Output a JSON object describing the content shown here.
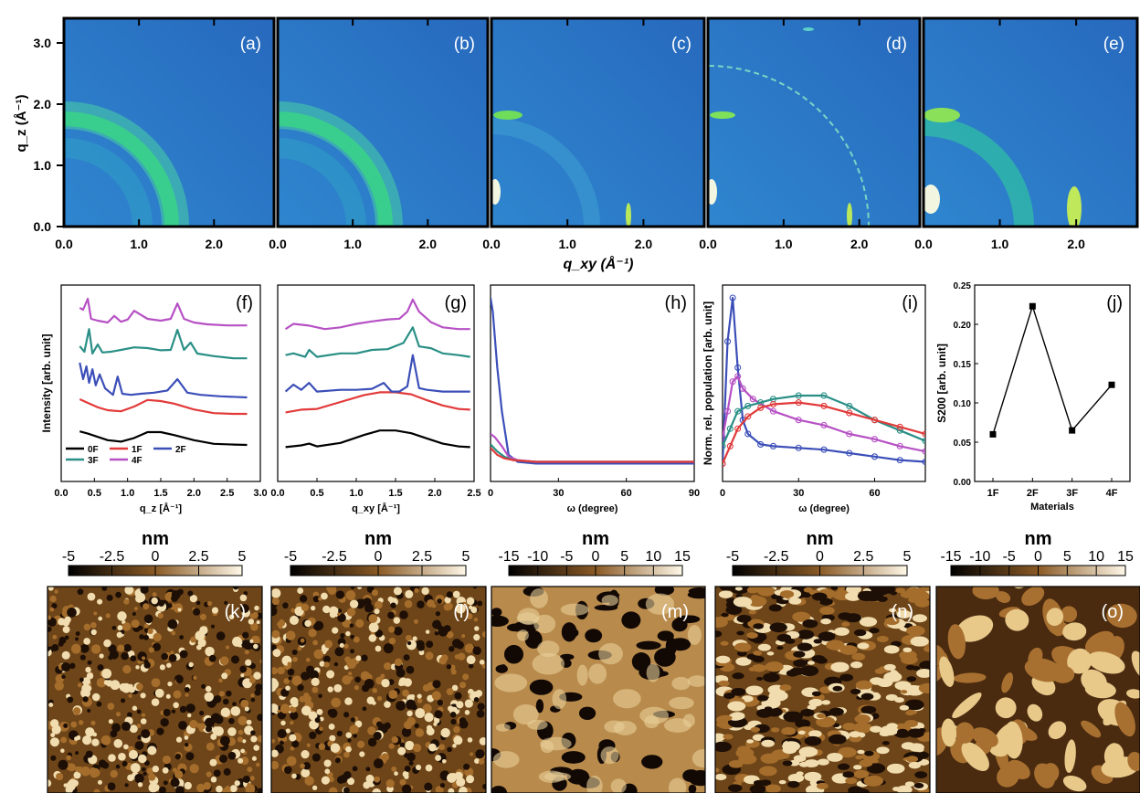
{
  "colors": {
    "giwaxs_bg": "#2a74c6",
    "giwaxs_ring": "#35c3a6",
    "giwaxs_hot": "#e7f29a",
    "series": {
      "0F": "#000000",
      "1F": "#e23a3a",
      "2F": "#3c4fb8",
      "3F": "#2a8f86",
      "4F": "#b651c4"
    },
    "afm_dark": "#1d0f06",
    "afm_mid": "#8a5a25",
    "afm_light": "#f1e3c0"
  },
  "giwaxs": {
    "ylabel": "q_z (Å⁻¹)",
    "xlabel": "q_xy (Å⁻¹)",
    "xticks": [
      "0.0",
      "1.0",
      "2.0"
    ],
    "yticks": [
      "0.0",
      "1.0",
      "2.0",
      "3.0"
    ],
    "panels": [
      {
        "label": "(a)"
      },
      {
        "label": "(b)"
      },
      {
        "label": "(c)"
      },
      {
        "label": "(d)"
      },
      {
        "label": "(e)"
      }
    ]
  },
  "chart_data": [
    {
      "id": "f",
      "type": "line",
      "label": "(f)",
      "xlabel": "q_z [Å⁻¹]",
      "ylabel": "Intensity [arb. unit]",
      "xlim": [
        0.0,
        3.0
      ],
      "xticks": [
        "0.0",
        "0.5",
        "1.0",
        "1.5",
        "2.0",
        "2.5",
        "3.0"
      ],
      "legend": [
        "0F",
        "1F",
        "2F",
        "3F",
        "4F"
      ],
      "series": [
        {
          "name": "0F",
          "x": [
            0.28,
            0.4,
            0.55,
            0.7,
            0.9,
            1.1,
            1.3,
            1.5,
            1.7,
            2.0,
            2.3,
            2.6,
            2.8
          ],
          "y": [
            0.62,
            0.56,
            0.47,
            0.38,
            0.34,
            0.44,
            0.6,
            0.6,
            0.52,
            0.38,
            0.28,
            0.26,
            0.25
          ]
        },
        {
          "name": "1F",
          "x": [
            0.28,
            0.4,
            0.55,
            0.7,
            0.9,
            1.1,
            1.3,
            1.5,
            1.7,
            2.0,
            2.3,
            2.6,
            2.8
          ],
          "y": [
            0.6,
            0.5,
            0.38,
            0.3,
            0.27,
            0.4,
            0.58,
            0.55,
            0.48,
            0.32,
            0.22,
            0.2,
            0.2
          ]
        },
        {
          "name": "2F",
          "x": [
            0.28,
            0.33,
            0.38,
            0.42,
            0.47,
            0.52,
            0.58,
            0.66,
            0.78,
            0.85,
            0.92,
            1.05,
            1.2,
            1.4,
            1.6,
            1.75,
            1.9,
            2.1,
            2.4,
            2.8
          ],
          "y": [
            1.0,
            0.55,
            0.9,
            0.45,
            0.82,
            0.38,
            0.68,
            0.3,
            0.12,
            0.62,
            0.15,
            0.12,
            0.15,
            0.18,
            0.24,
            0.55,
            0.18,
            0.12,
            0.08,
            0.05
          ]
        },
        {
          "name": "3F",
          "x": [
            0.28,
            0.35,
            0.42,
            0.47,
            0.55,
            0.62,
            0.75,
            0.9,
            1.1,
            1.3,
            1.5,
            1.65,
            1.75,
            1.85,
            1.95,
            2.05,
            2.3,
            2.6,
            2.8
          ],
          "y": [
            0.45,
            0.3,
            0.92,
            0.25,
            0.5,
            0.28,
            0.3,
            0.35,
            0.42,
            0.4,
            0.34,
            0.35,
            0.9,
            0.35,
            0.55,
            0.25,
            0.18,
            0.12,
            0.12
          ]
        },
        {
          "name": "4F",
          "x": [
            0.28,
            0.33,
            0.4,
            0.45,
            0.55,
            0.7,
            0.8,
            0.9,
            1.0,
            1.1,
            1.3,
            1.5,
            1.65,
            1.75,
            1.85,
            2.0,
            2.2,
            2.5,
            2.8
          ],
          "y": [
            0.6,
            0.55,
            0.85,
            0.3,
            0.25,
            0.2,
            0.38,
            0.22,
            0.28,
            0.52,
            0.3,
            0.25,
            0.3,
            0.72,
            0.3,
            0.2,
            0.15,
            0.12,
            0.12
          ]
        }
      ]
    },
    {
      "id": "g",
      "type": "line",
      "label": "(g)",
      "xlabel": "q_xy [Å⁻¹]",
      "xlim": [
        0.0,
        2.5
      ],
      "xticks": [
        "0.0",
        "0.5",
        "1.0",
        "1.5",
        "2.0",
        "2.5"
      ],
      "series": [
        {
          "name": "0F",
          "x": [
            0.1,
            0.3,
            0.4,
            0.5,
            0.8,
            1.1,
            1.3,
            1.5,
            1.7,
            1.9,
            2.1,
            2.3,
            2.45
          ],
          "y": [
            0.2,
            0.25,
            0.3,
            0.22,
            0.32,
            0.55,
            0.68,
            0.68,
            0.6,
            0.45,
            0.3,
            0.22,
            0.2
          ]
        },
        {
          "name": "1F",
          "x": [
            0.1,
            0.3,
            0.5,
            0.8,
            1.1,
            1.3,
            1.5,
            1.7,
            1.9,
            2.1,
            2.3,
            2.45
          ],
          "y": [
            0.2,
            0.28,
            0.3,
            0.5,
            0.7,
            0.78,
            0.78,
            0.72,
            0.55,
            0.4,
            0.3,
            0.28
          ]
        },
        {
          "name": "2F",
          "x": [
            0.1,
            0.2,
            0.3,
            0.4,
            0.5,
            0.8,
            1.0,
            1.2,
            1.35,
            1.45,
            1.55,
            1.65,
            1.72,
            1.8,
            1.9,
            2.1,
            2.3,
            2.45
          ],
          "y": [
            0.3,
            0.5,
            0.35,
            0.55,
            0.3,
            0.35,
            0.35,
            0.38,
            0.55,
            0.3,
            0.3,
            0.45,
            1.35,
            0.4,
            0.35,
            0.3,
            0.3,
            0.3
          ]
        },
        {
          "name": "3F",
          "x": [
            0.1,
            0.2,
            0.35,
            0.4,
            0.5,
            0.8,
            1.0,
            1.2,
            1.4,
            1.6,
            1.72,
            1.8,
            1.95,
            2.1,
            2.3,
            2.45
          ],
          "y": [
            0.55,
            0.6,
            0.5,
            0.7,
            0.5,
            0.6,
            0.6,
            0.7,
            0.72,
            0.9,
            1.35,
            0.8,
            0.75,
            0.6,
            0.55,
            0.5
          ]
        },
        {
          "name": "4F",
          "x": [
            0.1,
            0.2,
            0.4,
            0.6,
            0.8,
            1.0,
            1.2,
            1.4,
            1.55,
            1.65,
            1.72,
            1.8,
            1.95,
            2.1,
            2.3,
            2.45
          ],
          "y": [
            0.4,
            0.55,
            0.5,
            0.4,
            0.45,
            0.55,
            0.62,
            0.68,
            0.7,
            0.9,
            1.25,
            0.9,
            0.6,
            0.45,
            0.4,
            0.4
          ]
        }
      ]
    },
    {
      "id": "h",
      "type": "line",
      "label": "(h)",
      "xlabel": "ω (degree)",
      "xlim": [
        0,
        90
      ],
      "xticks": [
        "0",
        "30",
        "60",
        "90"
      ],
      "series": [
        {
          "name": "2F",
          "x": [
            0,
            1,
            3,
            5,
            8,
            12,
            20,
            40,
            60,
            90
          ],
          "y": [
            1.0,
            0.92,
            0.6,
            0.35,
            0.1,
            0.06,
            0.05,
            0.05,
            0.05,
            0.05
          ]
        },
        {
          "name": "4F",
          "x": [
            0,
            2,
            5,
            8,
            12,
            20,
            40,
            60,
            90
          ],
          "y": [
            0.22,
            0.2,
            0.15,
            0.09,
            0.07,
            0.06,
            0.06,
            0.06,
            0.06
          ]
        },
        {
          "name": "3F",
          "x": [
            0,
            3,
            6,
            10,
            20,
            40,
            60,
            90
          ],
          "y": [
            0.16,
            0.12,
            0.09,
            0.07,
            0.06,
            0.06,
            0.06,
            0.06
          ]
        },
        {
          "name": "1F",
          "x": [
            0,
            3,
            6,
            10,
            20,
            40,
            60,
            90
          ],
          "y": [
            0.14,
            0.1,
            0.08,
            0.07,
            0.06,
            0.06,
            0.06,
            0.06
          ]
        }
      ]
    },
    {
      "id": "i",
      "type": "line",
      "label": "(i)",
      "xlabel": "ω (degree)",
      "ylabel": "Norm. rel. population [arb. unit]",
      "xlim": [
        0,
        80
      ],
      "xticks": [
        "0",
        "30",
        "60"
      ],
      "series": [
        {
          "name": "2F",
          "x": [
            0,
            2,
            4,
            6,
            8,
            10,
            15,
            20,
            30,
            40,
            50,
            60,
            70,
            80
          ],
          "y": [
            0.05,
            0.75,
            1.0,
            0.6,
            0.3,
            0.22,
            0.16,
            0.15,
            0.14,
            0.13,
            0.11,
            0.09,
            0.07,
            0.06
          ]
        },
        {
          "name": "4F",
          "x": [
            0,
            2,
            4,
            6,
            8,
            12,
            20,
            30,
            40,
            50,
            60,
            70,
            80
          ],
          "y": [
            0.2,
            0.35,
            0.52,
            0.55,
            0.48,
            0.42,
            0.35,
            0.3,
            0.27,
            0.22,
            0.19,
            0.15,
            0.12
          ]
        },
        {
          "name": "3F",
          "x": [
            0,
            3,
            6,
            10,
            15,
            20,
            30,
            40,
            50,
            60,
            70,
            80
          ],
          "y": [
            0.15,
            0.25,
            0.35,
            0.38,
            0.4,
            0.42,
            0.44,
            0.44,
            0.38,
            0.3,
            0.24,
            0.18
          ]
        },
        {
          "name": "1F",
          "x": [
            0,
            3,
            6,
            10,
            15,
            20,
            30,
            40,
            50,
            60,
            70,
            80
          ],
          "y": [
            0.05,
            0.15,
            0.25,
            0.32,
            0.37,
            0.39,
            0.4,
            0.38,
            0.34,
            0.3,
            0.26,
            0.22
          ]
        }
      ]
    },
    {
      "id": "j",
      "type": "line",
      "label": "(j)",
      "xlabel": "Materials",
      "ylabel": "S200 [arb. unit]",
      "categories": [
        "1F",
        "2F",
        "3F",
        "4F"
      ],
      "values": [
        0.06,
        0.223,
        0.065,
        0.123
      ],
      "ylim": [
        0.0,
        0.25
      ],
      "yticks": [
        "0.00",
        "0.05",
        "0.10",
        "0.15",
        "0.20",
        "0.25"
      ]
    }
  ],
  "afm": [
    {
      "label": "(k)",
      "unit": "nm",
      "scale": [
        "-5",
        "-2.5",
        "0",
        "2.5",
        "5"
      ],
      "kind": "fine"
    },
    {
      "label": "(l)",
      "unit": "nm",
      "scale": [
        "-5",
        "-2.5",
        "0",
        "2.5",
        "5"
      ],
      "kind": "fine"
    },
    {
      "label": "(m)",
      "unit": "nm",
      "scale": [
        "-15",
        "-10",
        "-5",
        "0",
        "5",
        "10",
        "15"
      ],
      "kind": "holes"
    },
    {
      "label": "(n)",
      "unit": "nm",
      "scale": [
        "-5",
        "-2.5",
        "0",
        "2.5",
        "5"
      ],
      "kind": "worm"
    },
    {
      "label": "(o)",
      "unit": "nm",
      "scale": [
        "-15",
        "-10",
        "-5",
        "0",
        "5",
        "10",
        "15"
      ],
      "kind": "coarse"
    }
  ]
}
